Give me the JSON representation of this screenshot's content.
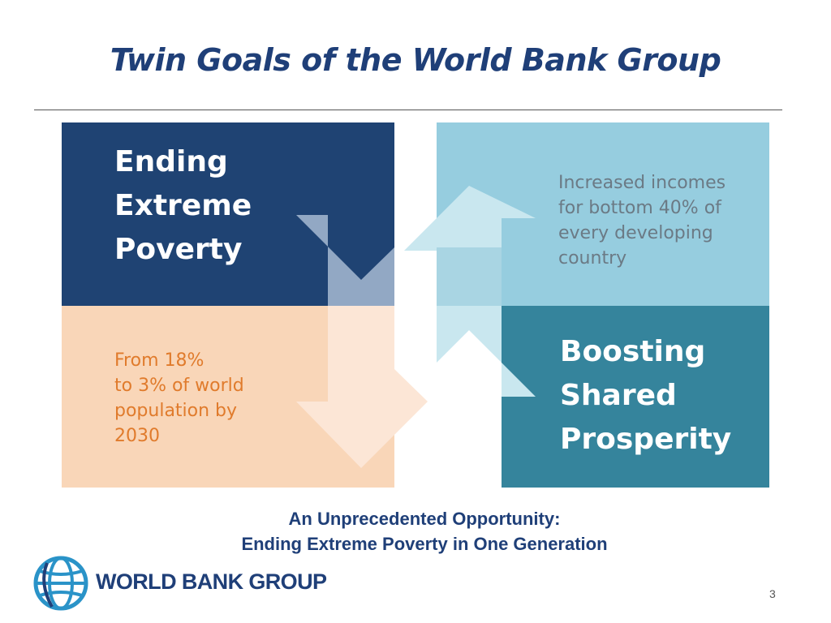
{
  "slide": {
    "title": "Twin Goals of the World Bank Group",
    "page_number": "3"
  },
  "goals": {
    "left": {
      "heading": [
        "Ending",
        "Extreme",
        "Poverty"
      ],
      "detail": [
        "From 18%",
        "to 3% of world",
        "population by",
        "2030"
      ]
    },
    "right": {
      "detail": [
        "Increased incomes",
        "for bottom 40% of",
        "every developing",
        "country"
      ],
      "heading": [
        "Boosting",
        "Shared",
        "Prosperity"
      ]
    }
  },
  "subtitle": {
    "line1": "An Unprecedented Opportunity:",
    "line2": "Ending Extreme Poverty in One Generation"
  },
  "logo": {
    "text": "WORLD BANK GROUP",
    "icon": "globe-icon"
  },
  "colors": {
    "navy": "#1f4373",
    "peach": "#f9d6b8",
    "light_blue": "#96cddf",
    "teal": "#35849c",
    "title_blue": "#1f3f78",
    "orange_text": "#e07b2c"
  }
}
